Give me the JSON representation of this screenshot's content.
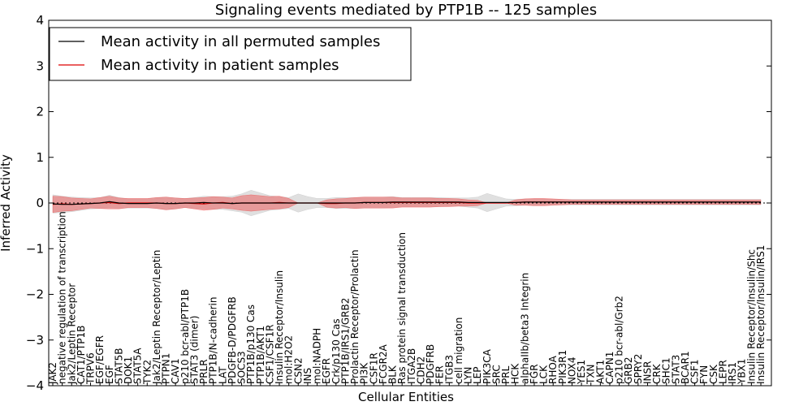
{
  "chart_data": {
    "type": "line",
    "title": "Signaling events mediated by PTP1B -- 125 samples",
    "xlabel": "Cellular Entities",
    "ylabel": "Inferred Activity",
    "ylim": [
      -4,
      4
    ],
    "yticks": [
      -4,
      -3,
      -2,
      -1,
      0,
      1,
      2,
      3,
      4
    ],
    "ytick_labels": [
      "−4",
      "−3",
      "−2",
      "−1",
      "0",
      "1",
      "2",
      "3",
      "4"
    ],
    "legend": {
      "placement": "top-left",
      "entries": [
        {
          "label": "Mean activity in all permuted samples",
          "color": "#000000"
        },
        {
          "label": "Mean activity in patient samples",
          "color": "#dd0000"
        }
      ]
    },
    "categories": [
      "JAK2",
      "negative regulation of transcription",
      "Jak2/Leptin Receptor",
      "CAT1/PTP1B",
      "TRPV6",
      "EGF/EGFR",
      "EGF",
      "STAT5B",
      "DOK1",
      "STAT5A",
      "TYK2",
      "Jak2/Leptin Receptor/Leptin",
      "PTPN1",
      "CAV1",
      "p210 bcr-abl/PTP1B",
      "STAT3 (dimer)",
      "PRLR",
      "PTP1B/N-cadherin",
      "LAT",
      "PDGFB-D/PDGFRB",
      "SOCS3",
      "PTP1B/p130 Cas",
      "PTP1B/AKT1",
      "CSF1/CSF1R",
      "Insulin Receptor/Insulin",
      "mol:H2O2",
      "CSN2",
      "INS",
      "mol:NADPH",
      "EGFR",
      "Crk/p130 Cas",
      "PTP1B/IRS1/GRB2",
      "Prolactin Receptor/Prolactin",
      "PI3K",
      "CSF1R",
      "FCGR2A",
      "BLK",
      "Ras protein signal transduction",
      "ITGA2B",
      "CDH2",
      "PDGFRB",
      "FER",
      "ITGB3",
      "cell migration",
      "LYN",
      "LEP",
      "PIK3CA",
      "SRC",
      "PRL",
      "HCK",
      "alphaIIb/beta3 Integrin",
      "FGR",
      "LCK",
      "RHOA",
      "PIK3R1",
      "NOX4",
      "YES1",
      "TXN",
      "AKT1",
      "CAPN1",
      "p210 bcr-abl/Grb2",
      "GRB2",
      "SPRY2",
      "INSR",
      "CRK",
      "SHC1",
      "STAT3",
      "BCAR1",
      "CSF1",
      "FYN",
      "CSK",
      "LEPR",
      "IRS1",
      "YBX1",
      "Insulin Receptor/Insulin/Shc",
      "Insulin Receptor/Insulin/IRS1"
    ],
    "series": [
      {
        "name": "Mean activity in patient samples",
        "color": "#dd0000",
        "values": [
          -0.03,
          -0.02,
          -0.03,
          -0.02,
          -0.01,
          0.0,
          0.01,
          -0.01,
          0.0,
          0.0,
          0.0,
          0.0,
          -0.01,
          -0.01,
          0.0,
          -0.01,
          -0.02,
          0.0,
          0.01,
          -0.01,
          0.0,
          0.0,
          0.0,
          0.0,
          0.01,
          0.0,
          0.0,
          0.0,
          0.0,
          -0.01,
          -0.01,
          0.0,
          0.0,
          0.01,
          0.01,
          0.01,
          0.01,
          0.01,
          0.01,
          0.01,
          0.01,
          0.01,
          0.01,
          0.01,
          0.0,
          0.0,
          0.0,
          0.0,
          0.0,
          0.01,
          0.02,
          0.02,
          0.02,
          0.02,
          0.02,
          0.02,
          0.02,
          0.02,
          0.02,
          0.02,
          0.02,
          0.02,
          0.02,
          0.02,
          0.02,
          0.02,
          0.02,
          0.02,
          0.02,
          0.02,
          0.02,
          0.02,
          0.02,
          0.02,
          0.02,
          0.02
        ],
        "spread": [
          0.18,
          0.16,
          0.14,
          0.12,
          0.1,
          0.12,
          0.14,
          0.12,
          0.1,
          0.1,
          0.1,
          0.12,
          0.14,
          0.12,
          0.1,
          0.12,
          0.14,
          0.14,
          0.12,
          0.12,
          0.16,
          0.18,
          0.16,
          0.14,
          0.14,
          0.1,
          0.0,
          0.0,
          0.0,
          0.08,
          0.1,
          0.1,
          0.12,
          0.12,
          0.12,
          0.12,
          0.12,
          0.1,
          0.1,
          0.1,
          0.1,
          0.09,
          0.09,
          0.08,
          0.07,
          0.06,
          0.0,
          0.0,
          0.0,
          0.06,
          0.07,
          0.08,
          0.08,
          0.07,
          0.06,
          0.05,
          0.05,
          0.05,
          0.05,
          0.05,
          0.05,
          0.05,
          0.05,
          0.05,
          0.05,
          0.05,
          0.05,
          0.05,
          0.05,
          0.05,
          0.05,
          0.05,
          0.05,
          0.05,
          0.05,
          0.05
        ]
      },
      {
        "name": "Mean activity in all permuted samples",
        "color": "#000000",
        "values": [
          -0.02,
          -0.03,
          -0.03,
          -0.02,
          -0.01,
          0.0,
          0.03,
          0.0,
          -0.01,
          -0.01,
          -0.01,
          0.0,
          -0.01,
          -0.01,
          0.0,
          0.0,
          0.01,
          0.0,
          0.0,
          -0.01,
          0.0,
          0.0,
          0.0,
          0.0,
          0.0,
          0.0,
          0.0,
          0.0,
          0.0,
          0.0,
          0.0,
          0.0,
          0.0,
          0.01,
          0.01,
          0.01,
          0.02,
          0.02,
          0.02,
          0.02,
          0.02,
          0.02,
          0.02,
          0.02,
          0.01,
          0.01,
          0.01,
          0.01,
          0.01,
          0.01,
          0.02,
          0.02,
          0.02,
          0.02,
          0.02,
          0.02,
          0.02,
          0.02,
          0.02,
          0.02,
          0.02,
          0.02,
          0.02,
          0.02,
          0.02,
          0.02,
          0.02,
          0.02,
          0.02,
          0.02,
          0.02,
          0.02,
          0.02,
          0.02,
          0.02,
          0.02
        ],
        "spread": [
          0.2,
          0.18,
          0.16,
          0.14,
          0.12,
          0.12,
          0.14,
          0.12,
          0.1,
          0.1,
          0.1,
          0.12,
          0.14,
          0.12,
          0.1,
          0.12,
          0.14,
          0.14,
          0.14,
          0.16,
          0.2,
          0.28,
          0.22,
          0.16,
          0.14,
          0.12,
          0.2,
          0.14,
          0.1,
          0.1,
          0.12,
          0.12,
          0.12,
          0.12,
          0.12,
          0.12,
          0.12,
          0.1,
          0.1,
          0.1,
          0.1,
          0.1,
          0.09,
          0.09,
          0.1,
          0.12,
          0.2,
          0.14,
          0.08,
          0.07,
          0.07,
          0.07,
          0.07,
          0.06,
          0.06,
          0.06,
          0.06,
          0.06,
          0.06,
          0.06,
          0.06,
          0.06,
          0.06,
          0.06,
          0.06,
          0.06,
          0.06,
          0.06,
          0.06,
          0.06,
          0.06,
          0.06,
          0.06,
          0.06,
          0.06,
          0.06
        ]
      }
    ]
  }
}
